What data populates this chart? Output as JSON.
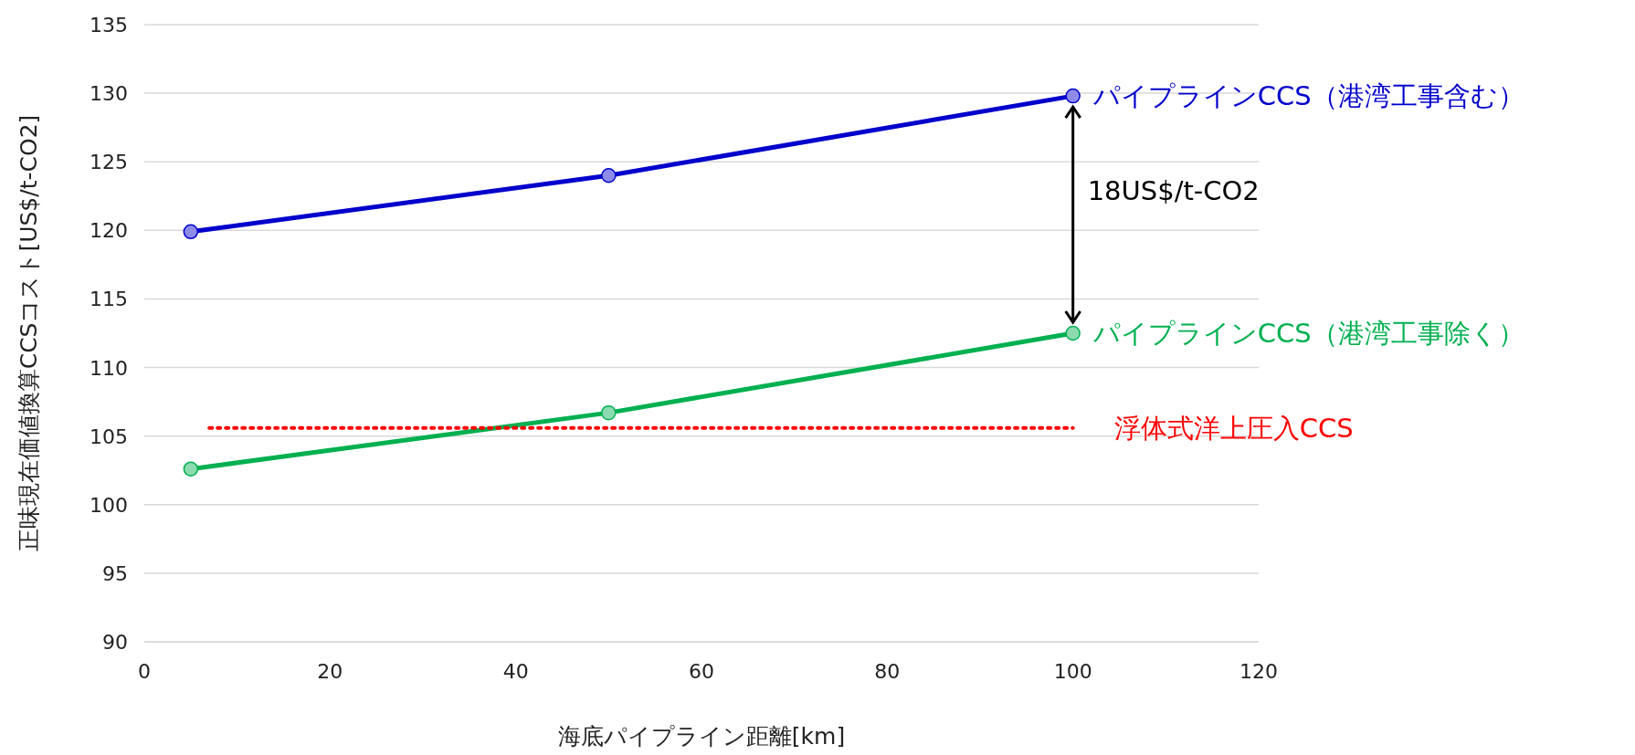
{
  "chart_data": {
    "type": "line",
    "xlabel": "海底パイプライン距離[km]",
    "ylabel": "正味現在価値換算CCSコスト[US$/t-CO2]",
    "xlim": [
      0,
      120
    ],
    "xticks": [
      0,
      20,
      40,
      60,
      80,
      100,
      120
    ],
    "ylim": [
      90,
      135
    ],
    "yticks": [
      90,
      95,
      100,
      105,
      110,
      115,
      120,
      125,
      130,
      135
    ],
    "grid": "y",
    "legend": false,
    "marker": "circle",
    "series": [
      {
        "name": "パイプラインCCS（港湾工事含む）",
        "color": "#0000cc",
        "x": [
          5,
          50,
          100
        ],
        "values": [
          119.9,
          124,
          129.8
        ]
      },
      {
        "name": "パイプラインCCS（港湾工事除く）",
        "color": "#00b050",
        "x": [
          5,
          50,
          100
        ],
        "values": [
          102.6,
          106.7,
          112.5
        ]
      },
      {
        "name": "浮体式洋上圧入CCS",
        "color": "#ff0000",
        "x": [
          7,
          100
        ],
        "values": [
          105.6,
          105.6
        ],
        "marker": "none",
        "line_style": "dotted"
      }
    ],
    "annotations": [
      "18US$/t-CO2"
    ]
  }
}
